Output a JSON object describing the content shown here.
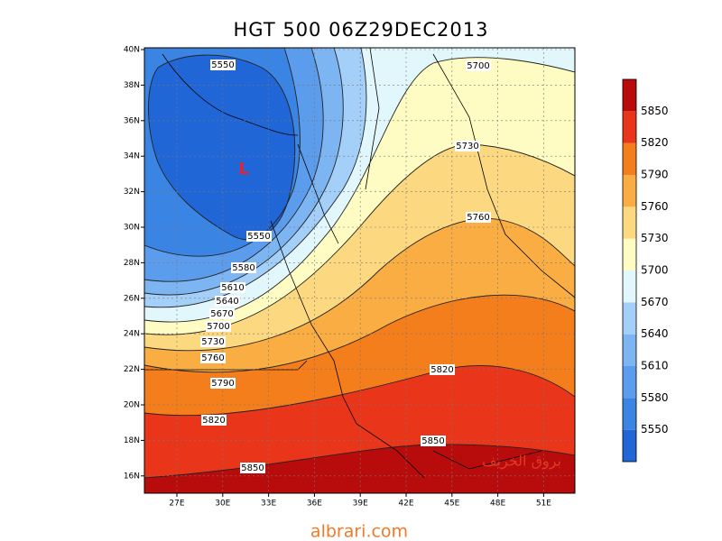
{
  "title": "HGT 500 06Z29DEC2013",
  "lat_labels": [
    "40N",
    "38N",
    "36N",
    "34N",
    "32N",
    "30N",
    "28N",
    "26N",
    "24N",
    "22N",
    "20N",
    "18N",
    "16N"
  ],
  "lon_labels": [
    "27E",
    "30E",
    "33E",
    "36E",
    "39E",
    "42E",
    "45E",
    "48E",
    "51E"
  ],
  "colorbar": {
    "levels": [
      5550,
      5580,
      5610,
      5640,
      5670,
      5700,
      5730,
      5760,
      5790,
      5820,
      5850
    ],
    "colors": [
      "#2166d6",
      "#3a84e3",
      "#5b9ced",
      "#7db5f3",
      "#a3cff8",
      "#e1f7fb",
      "#fefcc2",
      "#fcd980",
      "#f9ad42",
      "#f47d1c",
      "#e9361a",
      "#b80c0c"
    ]
  },
  "contour_labels": [
    5550,
    5550,
    5580,
    5610,
    5640,
    5670,
    5700,
    5730,
    5760,
    5790,
    5820,
    5850,
    5850,
    5820,
    5760,
    5730,
    5700
  ],
  "low_marker": "L",
  "watermark": "بروق الخريف",
  "footer": "albrari.com"
}
